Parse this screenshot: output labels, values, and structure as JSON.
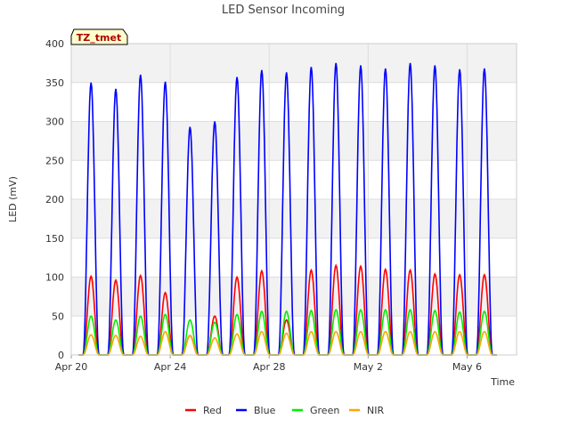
{
  "chart_data": {
    "type": "line",
    "title": "LED Sensor Incoming",
    "xlabel": "Time",
    "ylabel": "LED (mV)",
    "ylim": [
      0,
      400
    ],
    "xlim": [
      0,
      18
    ],
    "yticks": [
      0,
      50,
      100,
      150,
      200,
      250,
      300,
      350,
      400
    ],
    "xticks": [
      {
        "value": 0,
        "label": "Apr 20"
      },
      {
        "value": 4,
        "label": "Apr 24"
      },
      {
        "value": 8,
        "label": "Apr 28"
      },
      {
        "value": 12,
        "label": "May 2"
      },
      {
        "value": 16,
        "label": "May 6"
      }
    ],
    "tag_label": "TZ_tmet",
    "days_note": "x values are days since Apr 20; each daily peak shown as a diurnal pulse",
    "day_centers": [
      0.8,
      1.8,
      2.8,
      3.8,
      4.8,
      5.8,
      6.7,
      7.7,
      8.7,
      9.7,
      10.7,
      11.7,
      12.7,
      13.7,
      14.7,
      15.7,
      16.7
    ],
    "series": [
      {
        "name": "Red",
        "color": "#ff0000",
        "peaks": [
          101,
          96,
          102,
          80,
          25,
          50,
          100,
          108,
          45,
          109,
          115,
          114,
          110,
          109,
          104,
          103,
          103
        ]
      },
      {
        "name": "Blue",
        "color": "#0000ff",
        "peaks": [
          350,
          342,
          360,
          351,
          293,
          300,
          357,
          366,
          363,
          370,
          375,
          372,
          368,
          375,
          372,
          367,
          368
        ]
      },
      {
        "name": "Green",
        "color": "#00ee00",
        "peaks": [
          50,
          45,
          50,
          52,
          45,
          42,
          52,
          56,
          56,
          57,
          58,
          58,
          58,
          58,
          57,
          55,
          56
        ]
      },
      {
        "name": "NIR",
        "color": "#ffa500",
        "peaks": [
          26,
          25,
          24,
          30,
          25,
          22,
          27,
          30,
          28,
          30,
          30,
          30,
          30,
          30,
          30,
          30,
          30
        ]
      }
    ]
  }
}
